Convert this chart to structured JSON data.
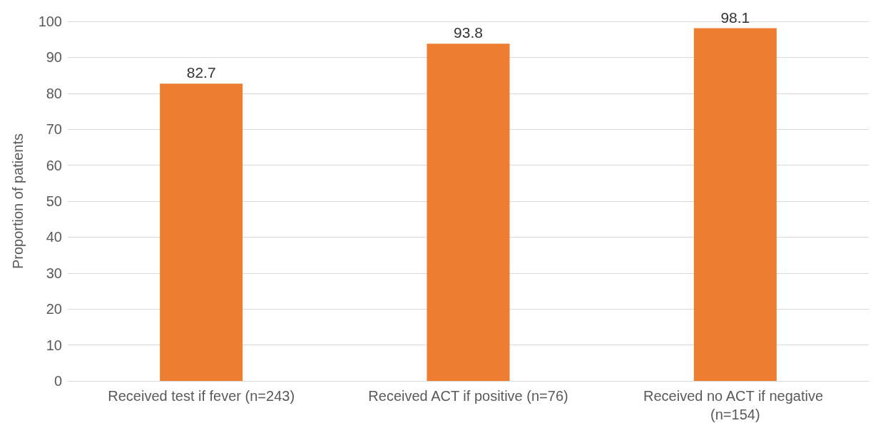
{
  "chart_data": {
    "type": "bar",
    "ylabel": "Proportion of patients",
    "categories": [
      "Received test if fever (n=243)",
      "Received ACT if positive (n=76)",
      "Received no ACT if negative (n=154)"
    ],
    "values": [
      82.7,
      93.8,
      98.1
    ],
    "color": "#ed7d31",
    "ylim": [
      0,
      100
    ],
    "yticks": [
      0,
      10,
      20,
      30,
      40,
      50,
      60,
      70,
      80,
      90,
      100
    ],
    "grid": "y",
    "data_labels": true
  }
}
